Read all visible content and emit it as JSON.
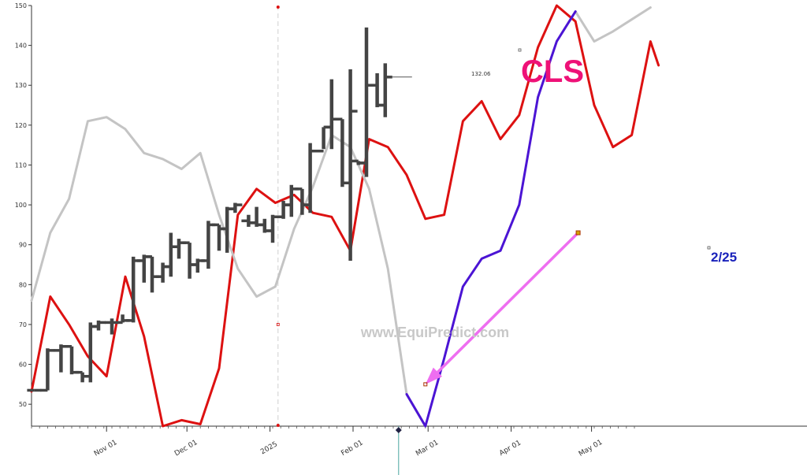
{
  "chart_data": {
    "type": "line",
    "title": "CLS",
    "xlabel": "",
    "ylabel": "",
    "ylim": [
      44.5,
      150
    ],
    "xlim": [
      "2024-10-04",
      "2025-05-19"
    ],
    "yticks": [
      50,
      60,
      70,
      80,
      90,
      100,
      110,
      120,
      130,
      140,
      150
    ],
    "xticks": [
      {
        "label": "Nov 01",
        "date": "2024-11-01",
        "color": "#333333"
      },
      {
        "label": "Dec 01",
        "date": "2024-12-01",
        "color": "#333333"
      },
      {
        "label": "2025",
        "date": "2025-01-01",
        "color": "#8b0000"
      },
      {
        "label": "Feb 01",
        "date": "2025-02-01",
        "color": "#333333"
      },
      {
        "label": "Mar 01",
        "date": "2025-03-01",
        "color": "#333333"
      },
      {
        "label": "Apr 01",
        "date": "2025-04-01",
        "color": "#333333"
      },
      {
        "label": "May 01",
        "date": "2025-05-01",
        "color": "#333333"
      }
    ],
    "grid": false,
    "legend": "none",
    "colors": {
      "price": "#444444",
      "red": "#dd1111",
      "gray": "#c4c4c4",
      "blue": "#4b14d4",
      "arrow": "#ee6ef0",
      "ticker": "#ee1177",
      "date_label": "#1a22bb",
      "today_line": "#4aa6a0"
    },
    "price_bars": [
      {
        "date": "2024-10-05",
        "open": 53.5,
        "high": 53.5,
        "low": 53.5,
        "close": 53.5
      },
      {
        "date": "2024-10-10",
        "open": 53.5,
        "high": 64.0,
        "low": 53.5,
        "close": 63.5
      },
      {
        "date": "2024-10-15",
        "open": 63.5,
        "high": 65.0,
        "low": 58.0,
        "close": 64.5
      },
      {
        "date": "2024-10-19",
        "open": 64.5,
        "high": 64.5,
        "low": 57.5,
        "close": 58.0
      },
      {
        "date": "2024-10-23",
        "open": 58.0,
        "high": 58.0,
        "low": 55.5,
        "close": 57.0
      },
      {
        "date": "2024-10-26",
        "open": 57.0,
        "high": 70.5,
        "low": 55.5,
        "close": 69.5
      },
      {
        "date": "2024-10-29",
        "open": 69.5,
        "high": 71.0,
        "low": 68.5,
        "close": 70.5
      },
      {
        "date": "2024-11-03",
        "open": 70.5,
        "high": 71.5,
        "low": 67.5,
        "close": 70.5
      },
      {
        "date": "2024-11-07",
        "open": 70.5,
        "high": 72.5,
        "low": 70.5,
        "close": 71.0
      },
      {
        "date": "2024-11-11",
        "open": 71.0,
        "high": 87.0,
        "low": 70.5,
        "close": 86.0
      },
      {
        "date": "2024-11-15",
        "open": 86.0,
        "high": 87.5,
        "low": 80.5,
        "close": 87.0
      },
      {
        "date": "2024-11-18",
        "open": 87.0,
        "high": 87.0,
        "low": 78.0,
        "close": 82.0
      },
      {
        "date": "2024-11-22",
        "open": 82.0,
        "high": 85.5,
        "low": 80.5,
        "close": 84.5
      },
      {
        "date": "2024-11-25",
        "open": 84.5,
        "high": 93.0,
        "low": 82.0,
        "close": 89.5
      },
      {
        "date": "2024-11-28",
        "open": 89.5,
        "high": 91.5,
        "low": 86.5,
        "close": 90.5
      },
      {
        "date": "2024-12-02",
        "open": 90.5,
        "high": 90.5,
        "low": 81.5,
        "close": 85.0
      },
      {
        "date": "2024-12-05",
        "open": 85.0,
        "high": 86.5,
        "low": 83.0,
        "close": 86.0
      },
      {
        "date": "2024-12-09",
        "open": 86.0,
        "high": 96.0,
        "low": 84.0,
        "close": 95.0
      },
      {
        "date": "2024-12-13",
        "open": 95.0,
        "high": 95.0,
        "low": 88.5,
        "close": 94.0
      },
      {
        "date": "2024-12-16",
        "open": 94.0,
        "high": 99.5,
        "low": 88.0,
        "close": 99.0
      },
      {
        "date": "2024-12-19",
        "open": 99.0,
        "high": 100.5,
        "low": 98.0,
        "close": 100.0
      },
      {
        "date": "2024-12-24",
        "open": 96.0,
        "high": 97.5,
        "low": 94.5,
        "close": 95.5
      },
      {
        "date": "2024-12-27",
        "open": 95.5,
        "high": 99.5,
        "low": 94.5,
        "close": 95.0
      },
      {
        "date": "2024-12-30",
        "open": 95.0,
        "high": 96.5,
        "low": 93.0,
        "close": 93.5
      },
      {
        "date": "2025-01-02",
        "open": 93.5,
        "high": 97.5,
        "low": 90.5,
        "close": 97.0
      },
      {
        "date": "2025-01-06",
        "open": 97.0,
        "high": 101.0,
        "low": 96.5,
        "close": 100.0
      },
      {
        "date": "2025-01-09",
        "open": 100.0,
        "high": 105.0,
        "low": 97.0,
        "close": 104.0
      },
      {
        "date": "2025-01-13",
        "open": 104.0,
        "high": 104.0,
        "low": 97.5,
        "close": 100.0
      },
      {
        "date": "2025-01-16",
        "open": 100.0,
        "high": 115.5,
        "low": 98.0,
        "close": 113.5
      },
      {
        "date": "2025-01-21",
        "open": 113.5,
        "high": 119.5,
        "low": 114.0,
        "close": 119.5
      },
      {
        "date": "2025-01-24",
        "open": 119.5,
        "high": 131.5,
        "low": 114.0,
        "close": 121.5
      },
      {
        "date": "2025-01-28",
        "open": 121.5,
        "high": 121.5,
        "low": 104.5,
        "close": 105.5
      },
      {
        "date": "2025-01-31",
        "open": 105.5,
        "high": 134.0,
        "low": 86.0,
        "close": 123.5
      },
      {
        "date": "2025-02-03",
        "open": 111.0,
        "high": 111.0,
        "low": 110.0,
        "close": 110.5
      },
      {
        "date": "2025-02-06",
        "open": 110.5,
        "high": 144.5,
        "low": 107.0,
        "close": 130.0
      },
      {
        "date": "2025-02-10",
        "open": 130.0,
        "high": 133.0,
        "low": 124.5,
        "close": 125.0
      },
      {
        "date": "2025-02-13",
        "open": 125.0,
        "high": 135.5,
        "low": 122.0,
        "close": 132.06
      }
    ],
    "last_price_label": "132.06",
    "series": [
      {
        "color": "#dd1111",
        "points": [
          [
            "2024-10-04",
            53.2
          ],
          [
            "2024-10-11",
            77.0
          ],
          [
            "2024-10-18",
            70.0
          ],
          [
            "2024-10-25",
            62.0
          ],
          [
            "2024-11-01",
            57.0
          ],
          [
            "2024-11-08",
            82.0
          ],
          [
            "2024-11-15",
            67.0
          ],
          [
            "2024-11-22",
            44.5
          ],
          [
            "2024-11-29",
            46.0
          ],
          [
            "2024-12-06",
            45.0
          ],
          [
            "2024-12-13",
            59.0
          ],
          [
            "2024-12-20",
            97.5
          ],
          [
            "2024-12-27",
            104.0
          ],
          [
            "2025-01-03",
            100.5
          ],
          [
            "2025-01-10",
            102.5
          ],
          [
            "2025-01-17",
            98.0
          ],
          [
            "2025-01-24",
            97.0
          ],
          [
            "2025-01-31",
            88.5
          ],
          [
            "2025-02-07",
            116.5
          ],
          [
            "2025-02-14",
            114.5
          ],
          [
            "2025-02-21",
            107.5
          ],
          [
            "2025-02-28",
            96.5
          ],
          [
            "2025-03-07",
            97.5
          ],
          [
            "2025-03-14",
            121.0
          ],
          [
            "2025-03-21",
            126.0
          ],
          [
            "2025-03-28",
            116.5
          ],
          [
            "2025-04-04",
            122.5
          ],
          [
            "2025-04-11",
            139.5
          ],
          [
            "2025-04-18",
            150.0
          ],
          [
            "2025-04-25",
            146.0
          ],
          [
            "2025-05-02",
            125.0
          ],
          [
            "2025-05-09",
            114.5
          ],
          [
            "2025-05-16",
            117.5
          ],
          [
            "2025-05-23",
            141.0
          ],
          [
            "2025-05-26",
            135.0
          ]
        ]
      },
      {
        "color": "#c4c4c4",
        "points": [
          [
            "2024-10-04",
            76.0
          ],
          [
            "2024-10-11",
            93.0
          ],
          [
            "2024-10-18",
            101.5
          ],
          [
            "2024-10-25",
            121.0
          ],
          [
            "2024-11-01",
            122.0
          ],
          [
            "2024-11-08",
            119.0
          ],
          [
            "2024-11-15",
            113.0
          ],
          [
            "2024-11-22",
            111.5
          ],
          [
            "2024-11-29",
            109.0
          ],
          [
            "2024-12-06",
            113.0
          ],
          [
            "2024-12-13",
            97.5
          ],
          [
            "2024-12-20",
            84.0
          ],
          [
            "2024-12-27",
            77.0
          ],
          [
            "2025-01-03",
            79.5
          ],
          [
            "2025-01-10",
            94.0
          ],
          [
            "2025-01-17",
            104.5
          ],
          [
            "2025-01-24",
            117.5
          ],
          [
            "2025-01-31",
            114.5
          ],
          [
            "2025-02-07",
            104.0
          ],
          [
            "2025-02-14",
            84.0
          ],
          [
            "2025-02-21",
            52.5
          ],
          [
            "2025-02-28",
            44.5
          ]
        ]
      },
      {
        "color": "#c4c4c4",
        "points": [
          [
            "2025-04-25",
            148.5
          ],
          [
            "2025-05-02",
            141.0
          ],
          [
            "2025-05-09",
            143.5
          ],
          [
            "2025-05-16",
            146.5
          ],
          [
            "2025-05-23",
            149.5
          ]
        ]
      },
      {
        "color": "#4b14d4",
        "points": [
          [
            "2025-02-21",
            52.5
          ],
          [
            "2025-02-28",
            44.5
          ],
          [
            "2025-03-07",
            61.5
          ],
          [
            "2025-03-14",
            79.5
          ],
          [
            "2025-03-21",
            86.5
          ],
          [
            "2025-03-28",
            88.5
          ],
          [
            "2025-04-04",
            100.0
          ],
          [
            "2025-04-11",
            127.0
          ],
          [
            "2025-04-18",
            141.0
          ],
          [
            "2025-04-25",
            148.5
          ]
        ]
      }
    ],
    "annotations": {
      "ticker": "CLS",
      "date_label": "2/25",
      "watermark": "www.EquiPredict.com",
      "arrow": {
        "from": [
          "2025-04-26",
          93.0
        ],
        "to": [
          "2025-02-28",
          55.0
        ]
      },
      "vertical_marker_date": "2025-01-04",
      "today_date": "2025-02-18"
    }
  }
}
